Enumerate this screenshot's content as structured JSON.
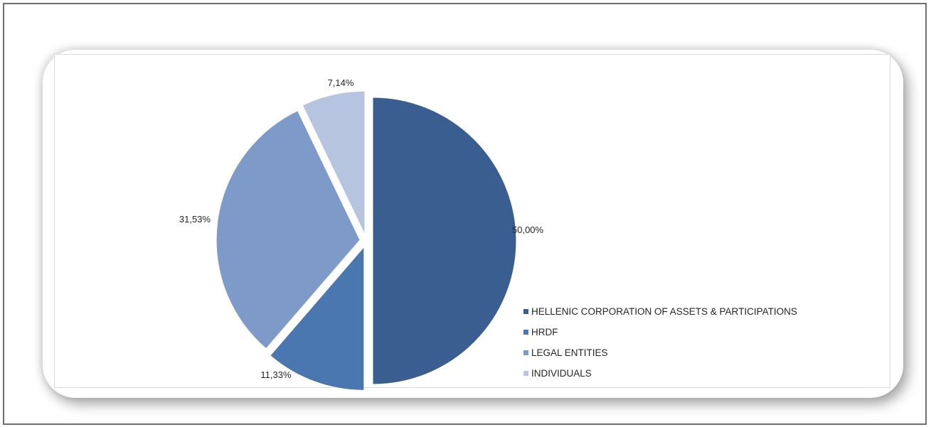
{
  "chart_data": {
    "type": "pie",
    "exploded": true,
    "start_angle": "12 o'clock, clockwise",
    "categories": [
      "HELLENIC CORPORATION OF ASSETS & PARTICIPATIONS",
      "HRDF",
      "LEGAL ENTITIES",
      "INDIVIDUALS"
    ],
    "values": [
      50.0,
      11.33,
      31.53,
      7.14
    ],
    "labels": [
      "50,00%",
      "11,33%",
      "31,53%",
      "7,14%"
    ],
    "colors": [
      "#3b5e90",
      "#4a77b0",
      "#7e9ac9",
      "#b6c4e0"
    ],
    "legend_position": "bottom-right"
  }
}
